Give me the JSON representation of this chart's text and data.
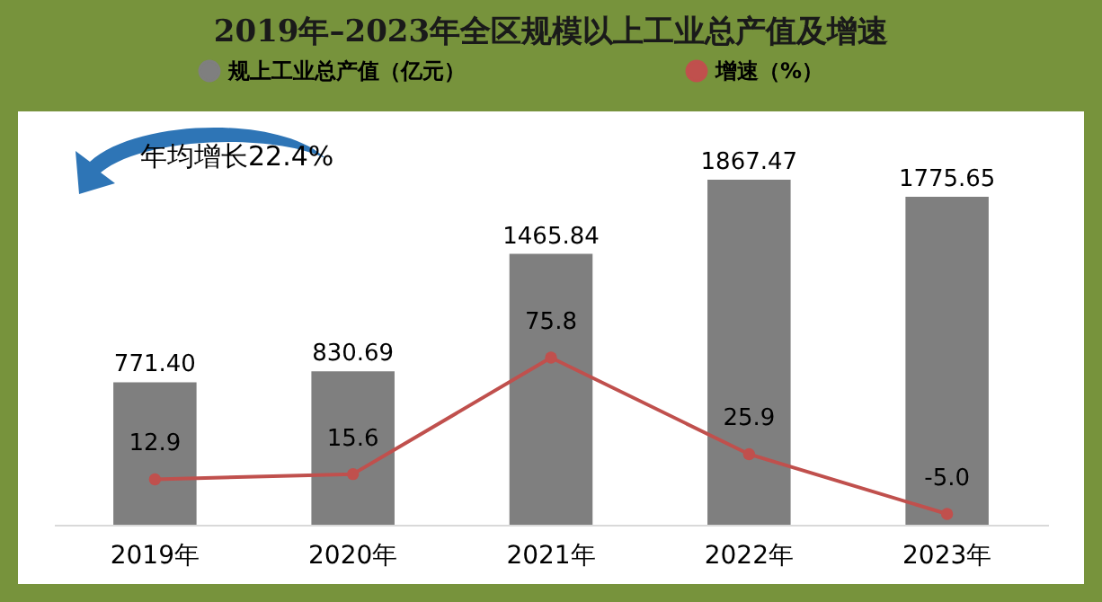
{
  "chart_data": {
    "type": "bar",
    "title": "2019年–2023年全区规模以上工业总产值及增速",
    "categories": [
      "2019年",
      "2020年",
      "2021年",
      "2022年",
      "2023年"
    ],
    "series": [
      {
        "name": "规上工业总产值（亿元）",
        "color": "#7f7f7f",
        "values": [
          771.4,
          830.69,
          1465.84,
          1867.47,
          1775.65
        ],
        "value_labels": [
          "771.40",
          "830.69",
          "1465.84",
          "1867.47",
          "1775.65"
        ]
      },
      {
        "name": "增速（%）",
        "type": "line",
        "axis": "y2",
        "color": "#c0504d",
        "values": [
          12.9,
          15.6,
          75.8,
          25.9,
          -5.0
        ],
        "value_labels": [
          "12.9",
          "15.6",
          "75.8",
          "25.9",
          "-5.0"
        ]
      }
    ],
    "tick_labels": "x",
    "legend": "top",
    "marker": "circle",
    "line_style": "solid",
    "grid": false,
    "annotations": [
      "年均增长22.4%"
    ]
  }
}
